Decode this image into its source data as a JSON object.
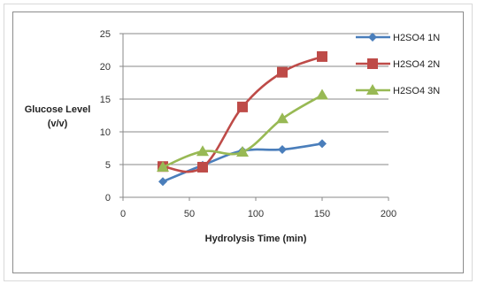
{
  "chart_data": {
    "type": "line",
    "xlabel": "Hydrolysis Time (min)",
    "ylabel_lines": [
      "Glucose Level",
      "(v/v)"
    ],
    "xlim": [
      0,
      200
    ],
    "ylim": [
      0,
      25
    ],
    "x_ticks": [
      "0",
      "50",
      "100",
      "150",
      "200"
    ],
    "y_ticks": [
      "0",
      "5",
      "10",
      "15",
      "20",
      "25"
    ],
    "grid": "horizontal",
    "legend_position": "right",
    "x": [
      30,
      60,
      90,
      120,
      150
    ],
    "series": [
      {
        "name": "H2SO4 1N",
        "color": "#4a7ebb",
        "marker": "diamond",
        "values": [
          2.4,
          4.9,
          7.1,
          7.3,
          8.2
        ]
      },
      {
        "name": "H2SO4 2N",
        "color": "#be4b48",
        "marker": "square",
        "values": [
          4.7,
          4.6,
          13.8,
          19.1,
          21.5
        ]
      },
      {
        "name": "H2SO4 3N",
        "color": "#98b954",
        "marker": "triangle",
        "values": [
          4.6,
          7.0,
          6.9,
          12.0,
          15.6
        ]
      }
    ]
  }
}
